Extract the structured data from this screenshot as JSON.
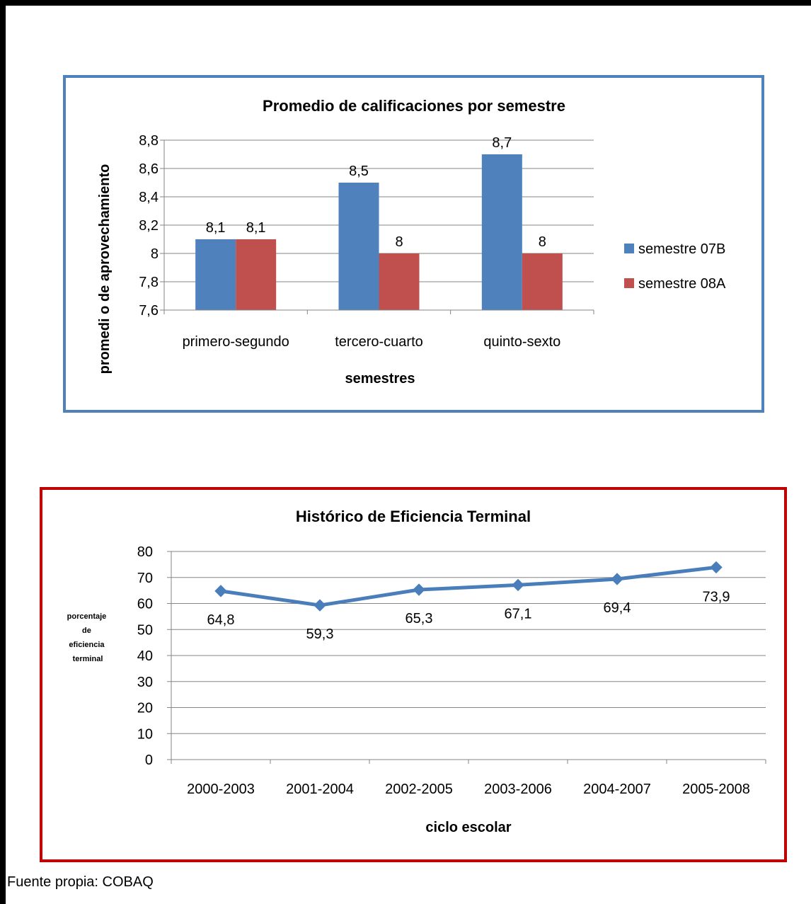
{
  "source_note": "Fuente propia: COBAQ",
  "colors": {
    "chart1_border": "#4f81bd",
    "chart2_border": "#c00000",
    "series1": "#4f81bd",
    "series2": "#c0504d",
    "line": "#4a7ebb",
    "grid": "#868686"
  },
  "chart_data": [
    {
      "type": "bar",
      "title": "Promedio de calificaciones por semestre",
      "xlabel": "semestres",
      "ylabel": "promedi o de aprovechamiento",
      "categories": [
        "primero-segundo",
        "tercero-cuarto",
        "quinto-sexto"
      ],
      "series": [
        {
          "name": "semestre 07B",
          "values": [
            8.1,
            8.5,
            8.7
          ],
          "labels": [
            "8,1",
            "8,5",
            "8,7"
          ]
        },
        {
          "name": "semestre 08A",
          "values": [
            8.1,
            8.0,
            8.0
          ],
          "labels": [
            "8,1",
            "8",
            "8"
          ]
        }
      ],
      "ylim": [
        7.6,
        8.8
      ],
      "yticks": [
        7.6,
        7.8,
        8.0,
        8.2,
        8.4,
        8.6,
        8.8
      ],
      "ytick_labels": [
        "7,6",
        "7,8",
        "8",
        "8,2",
        "8,4",
        "8,6",
        "8,8"
      ],
      "grid": true,
      "legend": "right"
    },
    {
      "type": "line",
      "title": "Histórico de Eficiencia Terminal",
      "xlabel": "ciclo escolar",
      "ylabel_lines": [
        "porcentaje",
        "de",
        "eficiencia",
        "terminal"
      ],
      "categories": [
        "2000-2003",
        "2001-2004",
        "2002-2005",
        "2003-2006",
        "2004-2007",
        "2005-2008"
      ],
      "values": [
        64.8,
        59.3,
        65.3,
        67.1,
        69.4,
        73.9
      ],
      "labels": [
        "64,8",
        "59,3",
        "65,3",
        "67,1",
        "69,4",
        "73,9"
      ],
      "ylim": [
        0,
        80
      ],
      "yticks": [
        0,
        10,
        20,
        30,
        40,
        50,
        60,
        70,
        80
      ],
      "ytick_labels": [
        "0",
        "10",
        "20",
        "30",
        "40",
        "50",
        "60",
        "70",
        "80"
      ],
      "grid": true,
      "legend": "none"
    }
  ]
}
